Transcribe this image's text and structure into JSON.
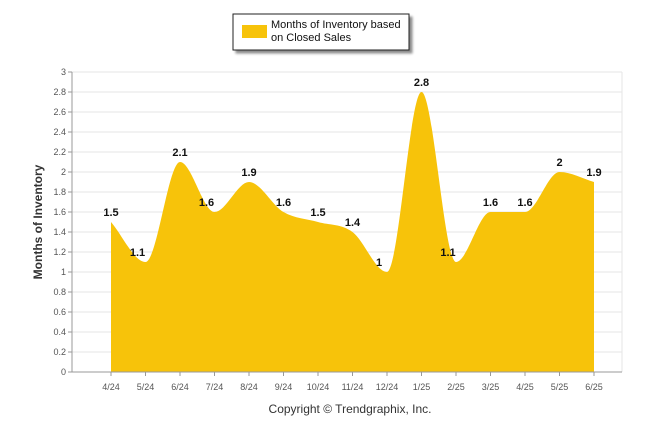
{
  "chart_data": {
    "type": "area",
    "categories": [
      "4/24",
      "5/24",
      "6/24",
      "7/24",
      "8/24",
      "9/24",
      "10/24",
      "11/24",
      "12/24",
      "1/25",
      "2/25",
      "3/25",
      "4/25",
      "5/25",
      "6/25"
    ],
    "series": [
      {
        "name": "Months of Inventory based on Closed Sales",
        "values": [
          1.5,
          1.1,
          2.1,
          1.6,
          1.9,
          1.6,
          1.5,
          1.4,
          1,
          2.8,
          1.1,
          1.6,
          1.6,
          2,
          1.9
        ]
      }
    ],
    "data_labels": [
      "1.5",
      "1.1",
      "2.1",
      "1.6",
      "1.9",
      "1.6",
      "1.5",
      "1.4",
      "1",
      "2.8",
      "1.1",
      "1.6",
      "1.6",
      "2",
      "1.9"
    ],
    "y_ticks": [
      "0",
      "0.2",
      "0.4",
      "0.6",
      "0.8",
      "1",
      "1.2",
      "1.4",
      "1.6",
      "1.8",
      "2",
      "2.2",
      "2.4",
      "2.6",
      "2.8",
      "3"
    ],
    "ylim": [
      0,
      3
    ],
    "ylabel": "Months of Inventory",
    "xlabel": "",
    "title": "",
    "legend": {
      "placement": "top-center",
      "lines": [
        "Months of Inventory based",
        "on Closed Sales"
      ]
    },
    "grid": true,
    "colors": {
      "fill": "#F7C30A",
      "grid": "#e6e6e6"
    }
  },
  "footer": {
    "copyright": "Copyright © Trendgraphix, Inc."
  }
}
